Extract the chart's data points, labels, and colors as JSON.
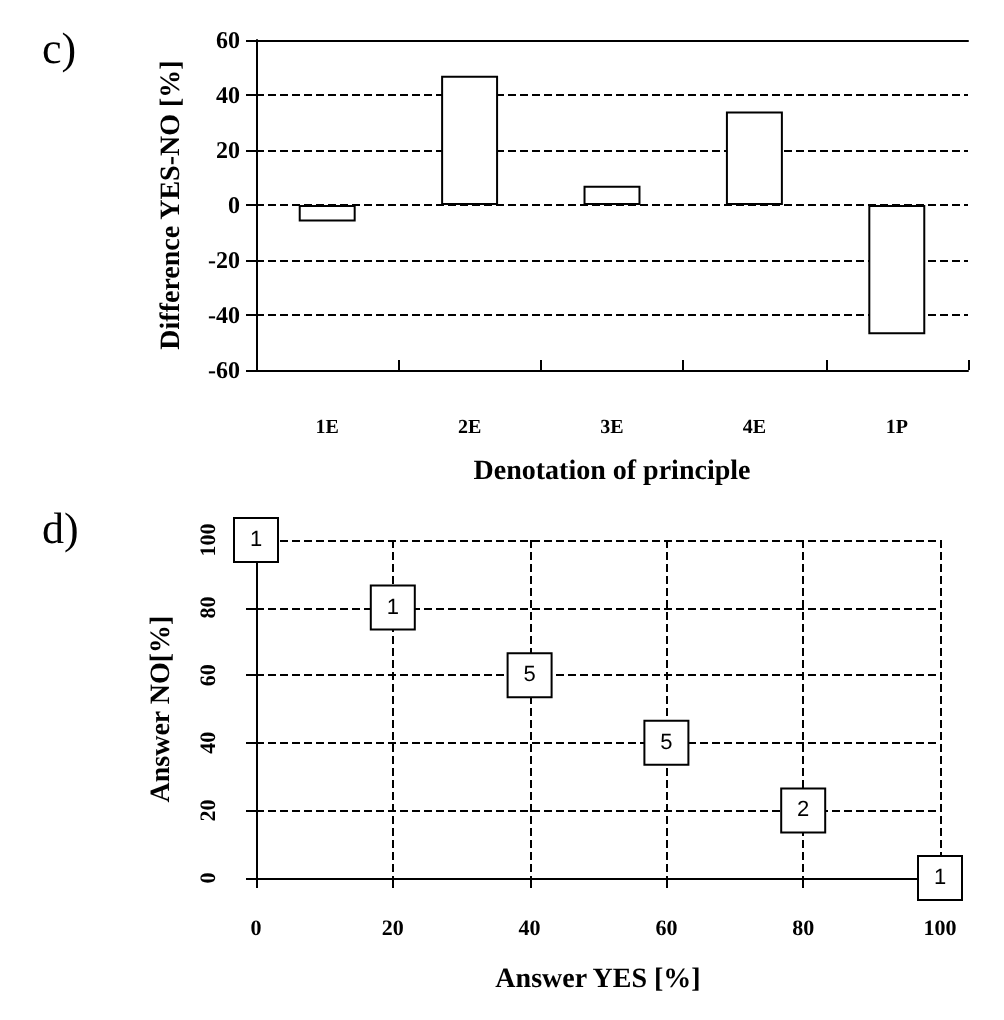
{
  "chart_data": [
    {
      "type": "bar",
      "title": "c)",
      "xlabel": "Denotation of principle",
      "ylabel": "Difference YES-NO [%]",
      "categories": [
        "1E",
        "2E",
        "3E",
        "4E",
        "1P"
      ],
      "color": "#ffffff",
      "values": [
        -6,
        47,
        7,
        34,
        -47
      ],
      "ylim": [
        -60,
        60
      ],
      "yticks": [
        -60,
        -40,
        -20,
        0,
        20,
        40,
        60
      ],
      "grid": "y",
      "line_style": "dashed"
    },
    {
      "type": "scatter",
      "title": "d)",
      "xlabel": "Answer YES [%]",
      "ylabel": "Answer NO[%]",
      "x": [
        0,
        20,
        40,
        60,
        80,
        100
      ],
      "color": "#ffffff",
      "values": [
        100,
        80,
        60,
        40,
        20,
        0
      ],
      "annotations": [
        {
          "text": "1",
          "x": 0,
          "y": 100
        },
        {
          "text": "1",
          "x": 20,
          "y": 80
        },
        {
          "text": "5",
          "x": 40,
          "y": 60
        },
        {
          "text": "5",
          "x": 60,
          "y": 40
        },
        {
          "text": "2",
          "x": 80,
          "y": 20
        },
        {
          "text": "1",
          "x": 100,
          "y": 0
        }
      ],
      "marker": "square",
      "xlim": [
        0,
        100
      ],
      "xticks": [
        0,
        20,
        40,
        60,
        80,
        100
      ],
      "ylim": [
        0,
        100
      ],
      "yticks": [
        0,
        20,
        40,
        60,
        80,
        100
      ],
      "grid": true
    }
  ]
}
